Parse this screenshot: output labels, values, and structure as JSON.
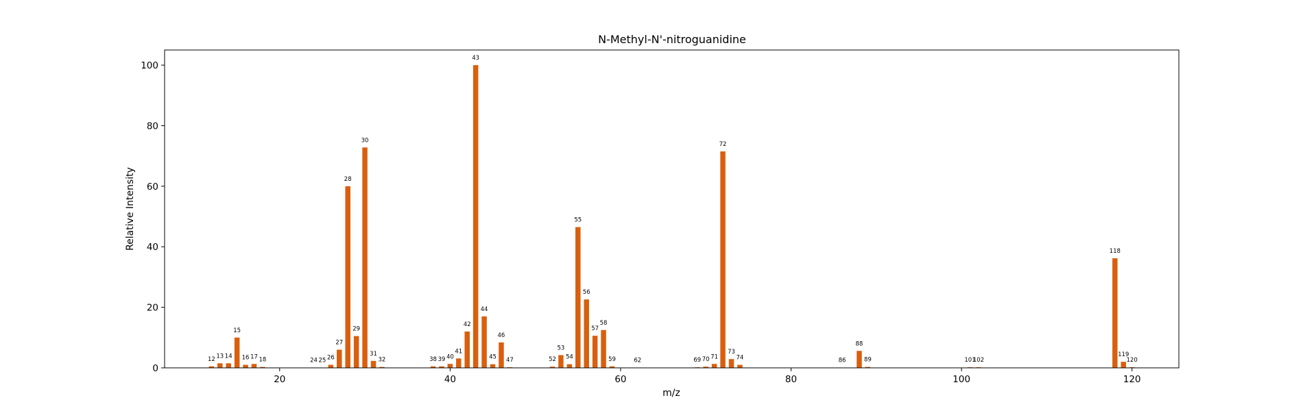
{
  "chart_data": {
    "type": "bar",
    "title": "N-Methyl-N'-nitroguanidine",
    "xlabel": "m/z",
    "ylabel": "Relative Intensity",
    "xlim": [
      6.5,
      125.5
    ],
    "ylim": [
      0,
      105
    ],
    "xticks": [
      20,
      40,
      60,
      80,
      100,
      120
    ],
    "yticks": [
      0,
      20,
      40,
      60,
      80,
      100
    ],
    "grid": false,
    "bar_color": "#d95f0e",
    "x": [
      12,
      13,
      14,
      15,
      16,
      17,
      18,
      24,
      25,
      26,
      27,
      28,
      29,
      30,
      31,
      32,
      38,
      39,
      40,
      41,
      42,
      43,
      44,
      45,
      46,
      47,
      52,
      53,
      54,
      55,
      56,
      57,
      58,
      59,
      62,
      69,
      70,
      71,
      72,
      73,
      74,
      86,
      88,
      89,
      101,
      102,
      118,
      119,
      120
    ],
    "values": [
      0.5,
      1.5,
      1.5,
      10.0,
      1.0,
      1.3,
      0.3,
      0.1,
      0.1,
      1.0,
      6.0,
      60.0,
      10.5,
      72.8,
      2.3,
      0.3,
      0.5,
      0.5,
      1.3,
      3.1,
      12.0,
      100.0,
      17.0,
      1.2,
      8.4,
      0.2,
      0.4,
      4.2,
      1.2,
      46.5,
      22.6,
      10.6,
      12.5,
      0.5,
      0.1,
      0.2,
      0.4,
      1.3,
      71.5,
      2.9,
      1.0,
      0.1,
      5.6,
      0.3,
      0.2,
      0.2,
      36.2,
      2.0,
      0.2
    ]
  }
}
